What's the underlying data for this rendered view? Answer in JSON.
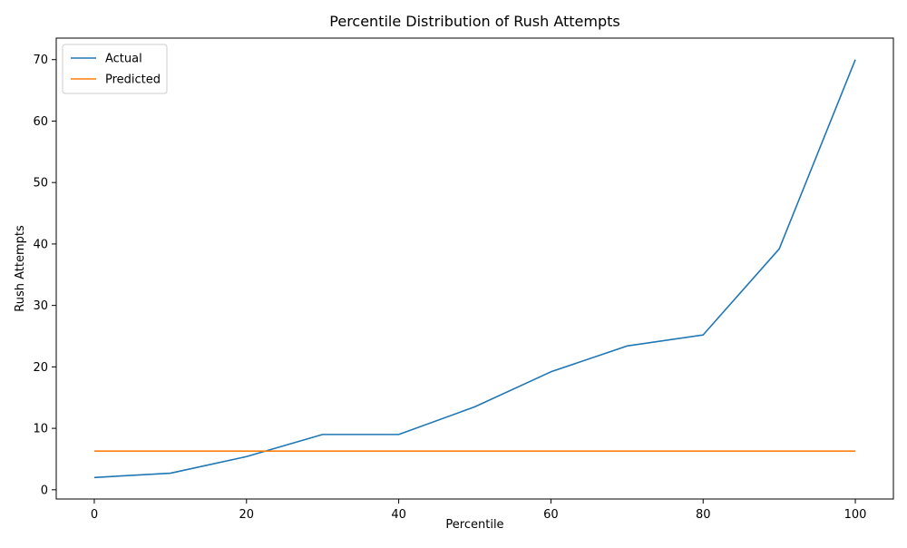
{
  "chart_data": {
    "type": "line",
    "title": "Percentile Distribution of Rush Attempts",
    "xlabel": "Percentile",
    "ylabel": "Rush Attempts",
    "xlim": [
      -5,
      105
    ],
    "ylim": [
      -1.5,
      73.5
    ],
    "x_ticks": [
      0,
      20,
      40,
      60,
      80,
      100
    ],
    "y_ticks": [
      0,
      10,
      20,
      30,
      40,
      50,
      60,
      70
    ],
    "grid": false,
    "legend_position": "top-left",
    "x": [
      0,
      10,
      20,
      30,
      40,
      50,
      60,
      70,
      80,
      90,
      100
    ],
    "series": [
      {
        "name": "Actual",
        "color": "#1f77b4",
        "values": [
          2.0,
          2.7,
          5.4,
          9.0,
          9.0,
          13.5,
          19.2,
          23.4,
          25.2,
          39.2,
          70.0
        ]
      },
      {
        "name": "Predicted",
        "color": "#ff7f0e",
        "values": [
          6.3,
          6.3,
          6.3,
          6.3,
          6.3,
          6.3,
          6.3,
          6.3,
          6.3,
          6.3,
          6.3
        ]
      }
    ]
  }
}
